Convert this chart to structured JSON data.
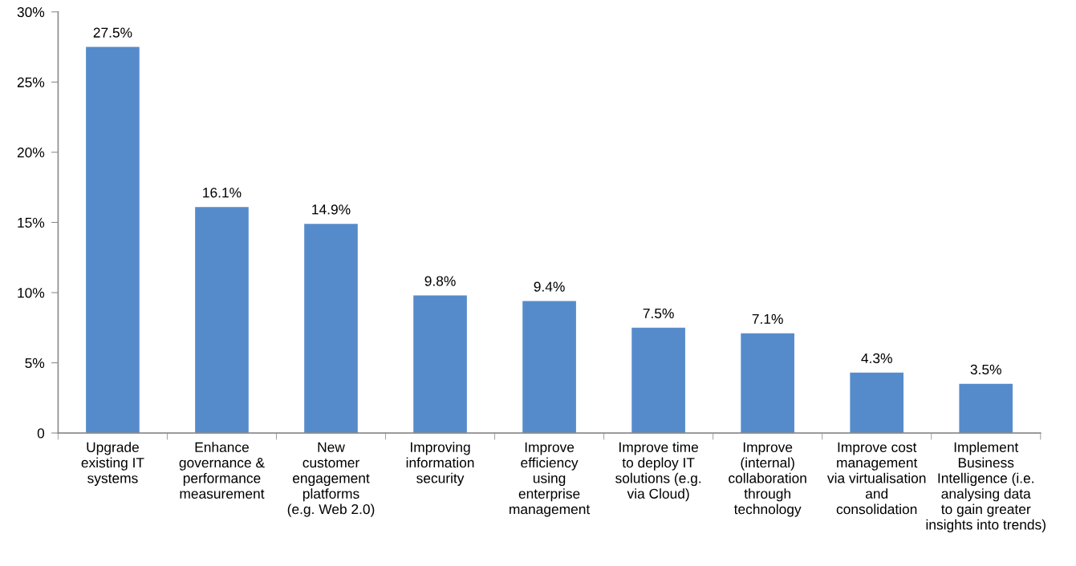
{
  "chart_data": {
    "type": "bar",
    "categories": [
      "Upgrade\nexisting IT\nsystems",
      "Enhance\ngovernance &\nperformance\nmeasurement",
      "New\ncustomer\nengagement\nplatforms\n(e.g. Web 2.0)",
      "Improving\ninformation\nsecurity",
      "Improve\nefficiency\nusing\nenterprise\nmanagement",
      "Improve time\nto deploy IT\nsolutions (e.g.\nvia Cloud)",
      "Improve\n(internal)\ncollaboration\nthrough\ntechnology",
      "Improve cost\nmanagement\nvia virtualisation\nand\nconsolidation",
      "Implement\nBusiness\nIntelligence (i.e.\nanalysing data\nto gain greater\ninsights into trends)"
    ],
    "values": [
      27.5,
      16.1,
      14.9,
      9.8,
      9.4,
      7.5,
      7.1,
      4.3,
      3.5
    ],
    "value_labels": [
      "27.5%",
      "16.1%",
      "14.9%",
      "9.8%",
      "9.4%",
      "7.5%",
      "7.1%",
      "4.3%",
      "3.5%"
    ],
    "color": "#568bcb",
    "ylim": [
      0,
      30
    ],
    "yticks": [
      0,
      {
        "value": 5,
        "label": "5%"
      },
      {
        "value": 10,
        "label": "10%"
      },
      {
        "value": 15,
        "label": "15%"
      },
      {
        "value": 20,
        "label": "20%"
      },
      {
        "value": 25,
        "label": "25%"
      },
      {
        "value": 30,
        "label": "30%"
      }
    ],
    "grid": false
  }
}
